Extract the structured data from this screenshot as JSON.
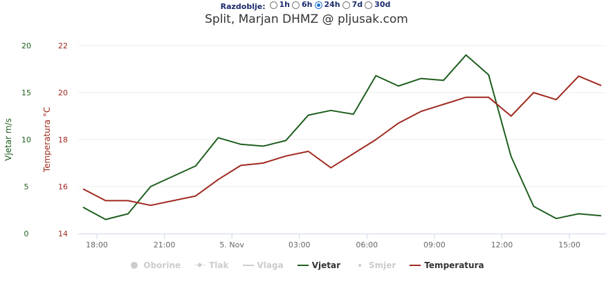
{
  "period": {
    "label": "Razdoblje:",
    "options": [
      {
        "label": "1h",
        "checked": false
      },
      {
        "label": "6h",
        "checked": false
      },
      {
        "label": "24h",
        "checked": true
      },
      {
        "label": "7d",
        "checked": false
      },
      {
        "label": "30d",
        "checked": false
      }
    ]
  },
  "chart_data": {
    "type": "line",
    "title": "Split, Marjan DHMZ @ pljusak.com",
    "xlabel": "",
    "x_tick_labels": [
      "18:00",
      "21:00",
      "5. Nov",
      "03:00",
      "06:00",
      "09:00",
      "12:00",
      "15:00"
    ],
    "x": [
      "17:23",
      "18:23",
      "19:23",
      "20:23",
      "21:23",
      "22:23",
      "23:23",
      "00:23",
      "01:23",
      "02:23",
      "03:23",
      "04:23",
      "05:23",
      "06:23",
      "07:23",
      "08:23",
      "09:23",
      "10:23",
      "11:23",
      "12:23",
      "13:23",
      "14:23",
      "15:23",
      "16:23"
    ],
    "y_axes": [
      {
        "id": "wind",
        "label": "Vjetar m/s",
        "ticks": [
          "0",
          "5",
          "10",
          "15",
          "20"
        ],
        "range": [
          0,
          20
        ],
        "color": "#1e5e1e"
      },
      {
        "id": "temp",
        "label": "Temperatura °C",
        "ticks": [
          "14",
          "16",
          "18",
          "20",
          "22"
        ],
        "range": [
          14,
          22
        ],
        "color": "#a0281e"
      }
    ],
    "grid": true,
    "legend_position": "bottom",
    "series": [
      {
        "name": "Vjetar",
        "axis": "wind",
        "color": "#1e5e1e",
        "values": [
          2.8,
          1.5,
          2.1,
          5.0,
          6.1,
          7.2,
          10.2,
          9.5,
          9.3,
          9.9,
          12.6,
          13.1,
          12.7,
          16.8,
          15.7,
          16.5,
          16.3,
          19.0,
          16.9,
          8.2,
          2.9,
          1.6,
          2.1,
          1.9
        ]
      },
      {
        "name": "Temperatura",
        "axis": "temp",
        "color": "#a0281e",
        "values": [
          15.9,
          15.4,
          15.4,
          15.2,
          15.4,
          15.6,
          16.3,
          16.9,
          17.0,
          17.3,
          17.5,
          16.8,
          17.4,
          18.0,
          18.7,
          19.2,
          19.5,
          19.8,
          19.8,
          19.0,
          20.0,
          19.7,
          20.7,
          20.3
        ]
      }
    ]
  },
  "legend": [
    {
      "label": "Oborine",
      "symbol": "dot",
      "visible": false,
      "color": "#cccccc"
    },
    {
      "label": "Tlak",
      "symbol": "diamond",
      "visible": false,
      "color": "#cccccc"
    },
    {
      "label": "Vlaga",
      "symbol": "line",
      "visible": false,
      "color": "#cccccc"
    },
    {
      "label": "Vjetar",
      "symbol": "line",
      "visible": true,
      "color": "#1e5e1e"
    },
    {
      "label": "Smjer",
      "symbol": "smalldot",
      "visible": false,
      "color": "#cccccc"
    },
    {
      "label": "Temperatura",
      "symbol": "line",
      "visible": true,
      "color": "#a0281e"
    }
  ]
}
